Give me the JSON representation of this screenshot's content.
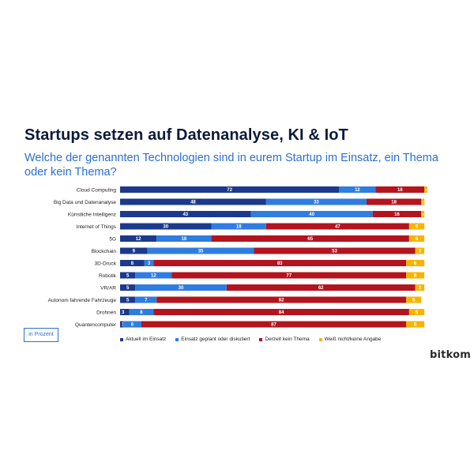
{
  "title": "Startups setzen auf Datenanalyse, KI & IoT",
  "subtitle": "Welche der genannten Technologien sind in eurem Startup im Einsatz, ein Thema oder kein Thema?",
  "unit_label": "in Prozent",
  "logo": "bitkom",
  "colors": {
    "einsatz": "#1b3a8c",
    "geplant": "#2f7de0",
    "kein_thema": "#b3141e",
    "weiss_nicht": "#f6b400"
  },
  "chart_data": {
    "type": "bar",
    "orientation": "horizontal",
    "stacked": true,
    "categories": [
      "Cloud Computing",
      "Big Data und Datenanalyse",
      "Künstliche Intelligenz",
      "Internet of Things",
      "5G",
      "Blockchain",
      "3D-Druck",
      "Robotik",
      "VR/AR",
      "Autonom fahrende Fahrzeuge",
      "Drohnen",
      "Quantencomputer"
    ],
    "series": [
      {
        "name": "Aktuell im Einsatz",
        "color": "#1b3a8c",
        "values": [
          72,
          48,
          43,
          30,
          12,
          9,
          8,
          5,
          5,
          5,
          3,
          1
        ]
      },
      {
        "name": "Einsatz geplant oder diskutiert",
        "color": "#2f7de0",
        "values": [
          12,
          33,
          40,
          18,
          18,
          35,
          3,
          12,
          30,
          7,
          8,
          6
        ]
      },
      {
        "name": "Derzeit kein Thema",
        "color": "#b3141e",
        "values": [
          16,
          18,
          16,
          47,
          65,
          53,
          83,
          77,
          62,
          82,
          84,
          87
        ]
      },
      {
        "name": "Weiß nicht/keine Angabe",
        "color": "#f6b400",
        "values": [
          1,
          1,
          1,
          5,
          5,
          3,
          6,
          6,
          3,
          5,
          5,
          6
        ]
      }
    ],
    "xlim": [
      0,
      101
    ],
    "grid": false,
    "legend_position": "bottom"
  }
}
